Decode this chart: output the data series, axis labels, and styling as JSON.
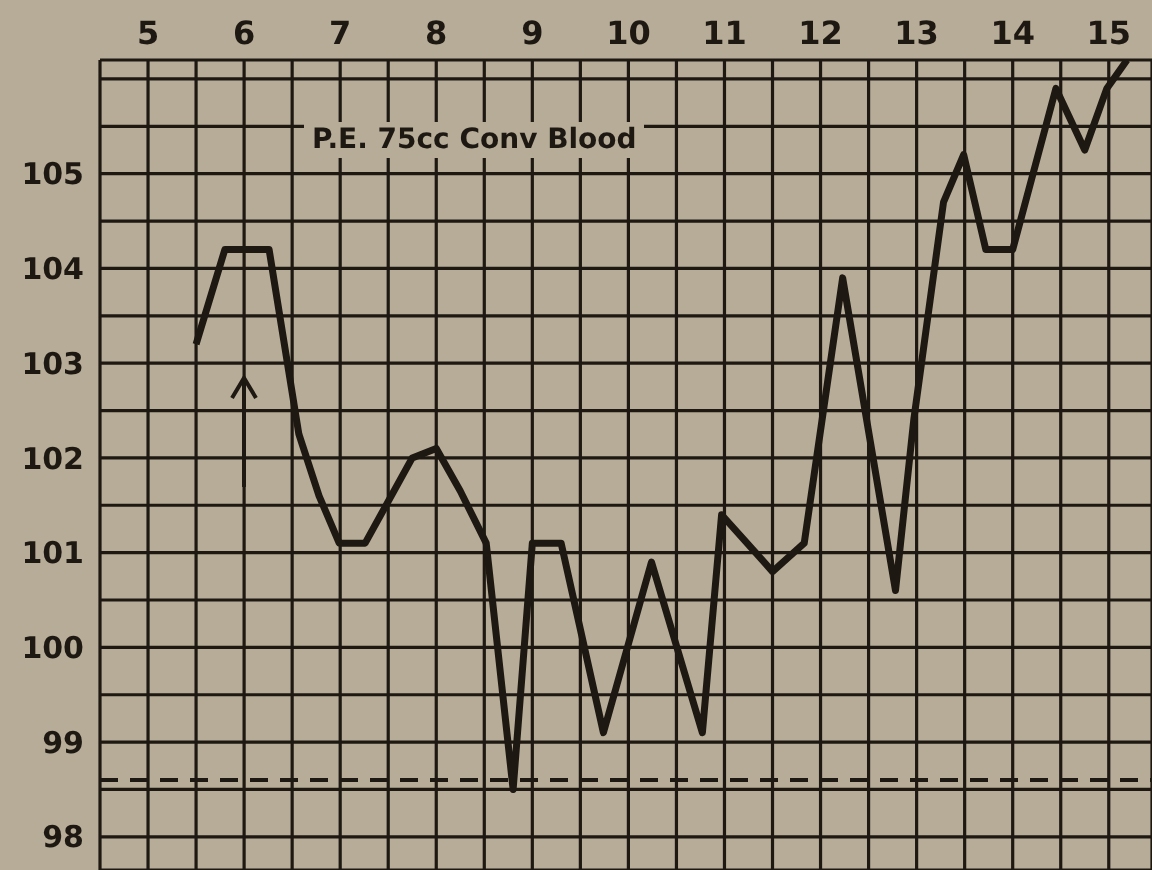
{
  "chart_data": {
    "type": "line",
    "annotations": [
      "P.E. 75cc Conv Blood"
    ],
    "xlim": [
      4.5,
      15.45
    ],
    "xticks": [
      {
        "value": 4.5,
        "label": null
      },
      5,
      {
        "value": 5.5,
        "label": null
      },
      6,
      {
        "value": 6.5,
        "label": null
      },
      7,
      {
        "value": 7.5,
        "label": null
      },
      8,
      {
        "value": 8.5,
        "label": null
      },
      9,
      {
        "value": 9.5,
        "label": null
      },
      10,
      {
        "value": 10.5,
        "label": null
      },
      11,
      {
        "value": 11.5,
        "label": null
      },
      12,
      {
        "value": 12.5,
        "label": null
      },
      13,
      {
        "value": 13.5,
        "label": null
      },
      14,
      {
        "value": 14.5,
        "label": null
      },
      15
    ],
    "ylim": [
      97.65,
      106.2
    ],
    "yticks": [
      98,
      {
        "value": 98.5,
        "label": null
      },
      99,
      {
        "value": 99.5,
        "label": null
      },
      100,
      {
        "value": 100.5,
        "label": null
      },
      101,
      {
        "value": 101.5,
        "label": null
      },
      102,
      {
        "value": 102.5,
        "label": null
      },
      103,
      {
        "value": 103.5,
        "label": null
      },
      104,
      {
        "value": 104.5,
        "label": null
      },
      105,
      {
        "value": 105.5,
        "label": null
      },
      {
        "value": 106,
        "label": null
      }
    ],
    "grid": true,
    "marker": "none",
    "line_style": "solid",
    "ref_lines": [
      {
        "axis": "y",
        "value": 98.6,
        "label": null,
        "color": "#1e1812",
        "line_style": "dashed"
      }
    ],
    "series": [
      {
        "color": "#1e1812",
        "x": [
          5.5,
          5.8,
          6.26,
          6.57,
          6.78,
          6.99,
          7.26,
          7.75,
          8.0,
          8.25,
          8.52,
          8.8,
          9.0,
          9.3,
          9.74,
          10.24,
          10.77,
          10.97,
          11.5,
          11.83,
          12.23,
          12.78,
          12.97,
          13.28,
          13.49,
          13.72,
          14.0,
          14.45,
          14.75,
          14.98,
          15.19
        ],
        "values": [
          103.2,
          104.2,
          104.2,
          102.25,
          101.6,
          101.1,
          101.1,
          102.0,
          102.1,
          101.65,
          101.1,
          98.5,
          101.1,
          101.1,
          99.1,
          100.9,
          99.1,
          101.4,
          100.8,
          101.1,
          103.9,
          100.6,
          102.4,
          104.7,
          105.2,
          104.2,
          104.2,
          105.9,
          105.25,
          105.9,
          106.2
        ]
      }
    ]
  }
}
